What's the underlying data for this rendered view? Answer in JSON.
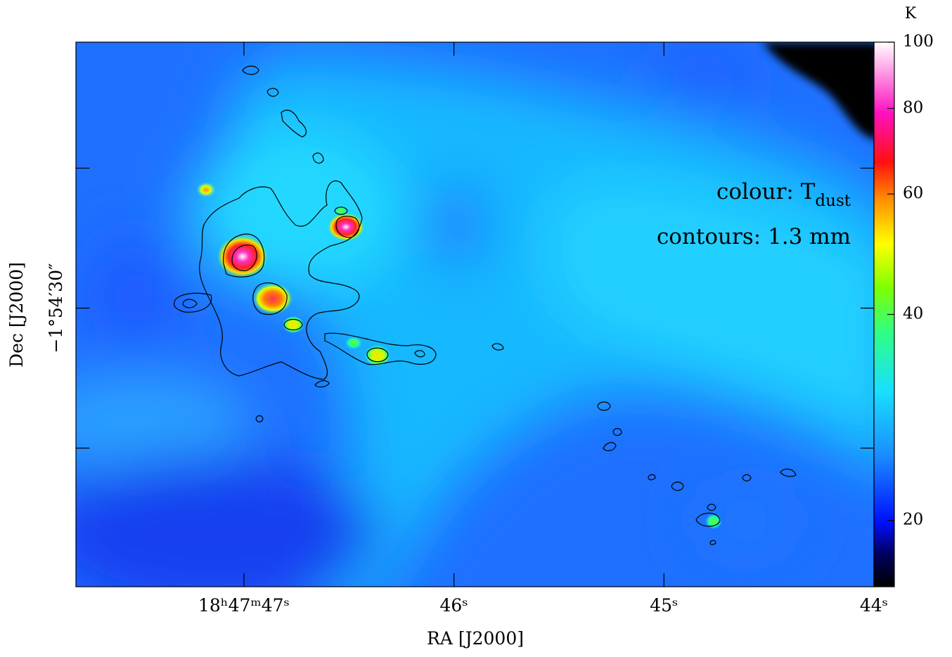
{
  "chart_data": {
    "type": "image",
    "xlabel": "RA [J2000]",
    "ylabel": "Dec [J2000]",
    "xlim": [
      47.8,
      44.0
    ],
    "xticks": [
      {
        "value": 47,
        "label": "18ʰ47ᵐ47ˢ"
      },
      {
        "value": 46,
        "label": "46ˢ"
      },
      {
        "value": 45,
        "label": "45ˢ"
      },
      {
        "value": 44,
        "label": "44ˢ"
      }
    ],
    "ylim": [
      49.9,
      11.0
    ],
    "yticks": [
      {
        "value": 20,
        "label": null
      },
      {
        "value": 30,
        "label": "−1°54′30″"
      },
      {
        "value": 40,
        "label": null
      }
    ],
    "colorbar": {
      "unit": "K",
      "lim": [
        16,
        100
      ],
      "log_scale": true,
      "ticks": [
        20,
        40,
        60,
        80,
        100
      ]
    },
    "annotations": [
      {
        "text": "colour: T",
        "subscript": "dust"
      },
      {
        "text": "contours: 1.3 mm"
      }
    ]
  }
}
